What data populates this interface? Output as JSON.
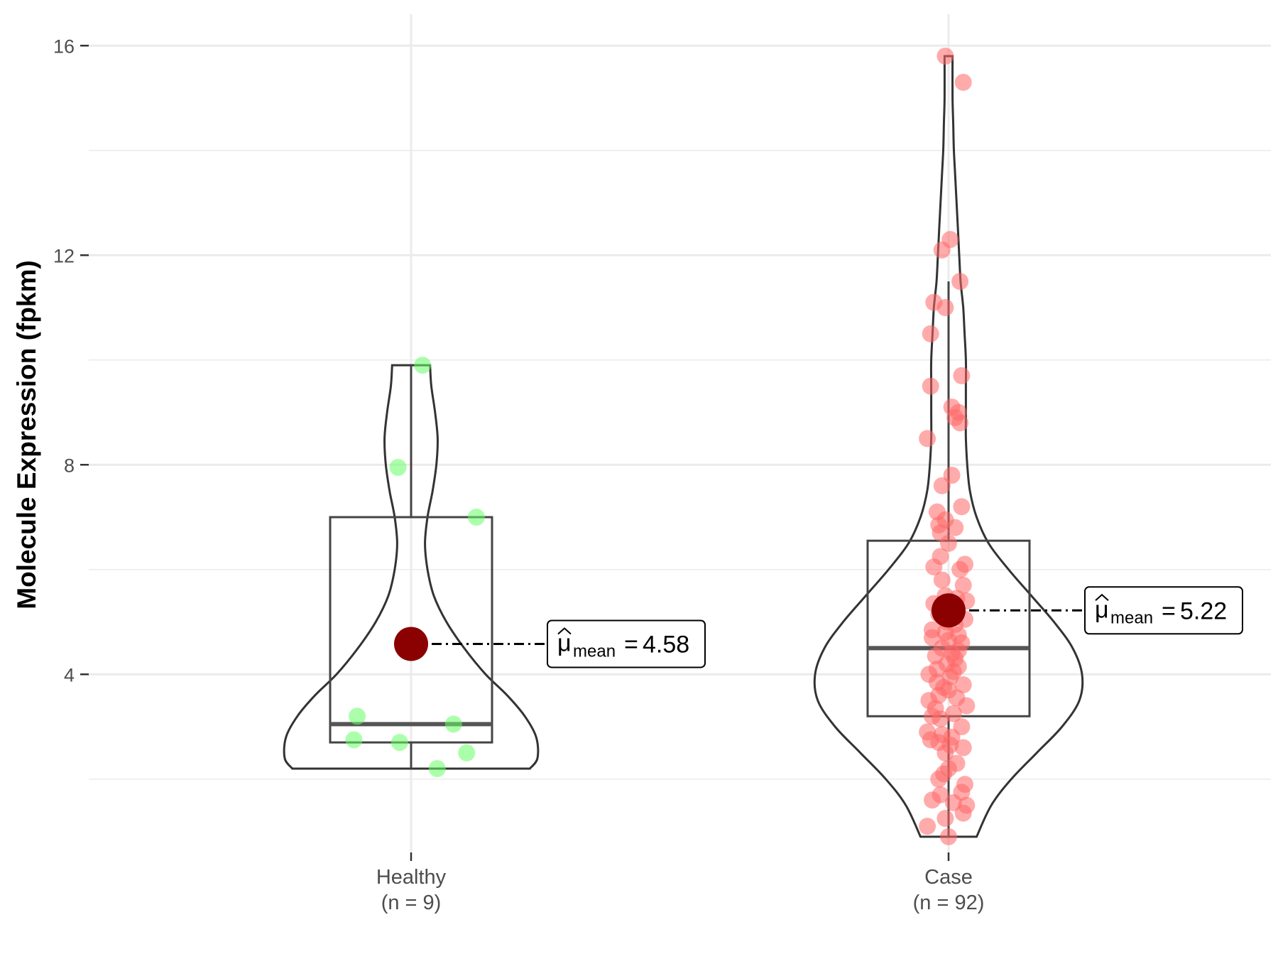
{
  "chart_data": {
    "type": "violin",
    "title": "",
    "xlabel": "",
    "ylabel": "Molecule Expression (fpkm)",
    "ylim": [
      0.6,
      16.6
    ],
    "y_ticks": [
      4,
      8,
      12,
      16
    ],
    "y_tick_labels": [
      "4",
      "8",
      "12",
      "16"
    ],
    "grid": true,
    "legend": "none",
    "mean_symbol": "μ",
    "mean_subscript": "mean",
    "groups": [
      {
        "category": "Healthy",
        "n_label": "(n = 9)",
        "color": "#66ff66",
        "mean": 4.58,
        "mean_text": "4.58",
        "box": {
          "whisker_low": 2.2,
          "q1": 2.7,
          "median": 3.05,
          "q3": 7.0,
          "whisker_high": 9.9
        },
        "violin_range": [
          2.2,
          9.9
        ],
        "violin_profile": [
          [
            2.2,
            0.94
          ],
          [
            2.4,
            1.0
          ],
          [
            2.8,
            0.99
          ],
          [
            3.2,
            0.9
          ],
          [
            3.6,
            0.76
          ],
          [
            4.0,
            0.59
          ],
          [
            4.5,
            0.42
          ],
          [
            5.0,
            0.28
          ],
          [
            5.5,
            0.18
          ],
          [
            6.0,
            0.13
          ],
          [
            6.5,
            0.11
          ],
          [
            7.0,
            0.13
          ],
          [
            7.5,
            0.17
          ],
          [
            8.0,
            0.2
          ],
          [
            8.5,
            0.21
          ],
          [
            9.0,
            0.19
          ],
          [
            9.5,
            0.16
          ],
          [
            9.9,
            0.15
          ]
        ],
        "points": [
          9.9,
          7.95,
          7.0,
          3.2,
          3.05,
          2.75,
          2.7,
          2.5,
          2.2
        ],
        "points_jitter": [
          0.07,
          -0.08,
          0.4,
          -0.33,
          0.26,
          -0.35,
          -0.07,
          0.34,
          0.16
        ]
      },
      {
        "category": "Case",
        "n_label": "(n = 92)",
        "color": "#ff6666",
        "mean": 5.22,
        "mean_text": "5.22",
        "box": {
          "whisker_low": 0.9,
          "q1": 3.2,
          "median": 4.5,
          "q3": 6.55,
          "whisker_high": 11.5
        },
        "violin_range": [
          0.9,
          15.8
        ],
        "violin_profile": [
          [
            0.9,
            0.21
          ],
          [
            1.5,
            0.32
          ],
          [
            2.0,
            0.47
          ],
          [
            2.5,
            0.66
          ],
          [
            3.0,
            0.85
          ],
          [
            3.5,
            0.98
          ],
          [
            4.0,
            1.0
          ],
          [
            4.5,
            0.93
          ],
          [
            5.0,
            0.79
          ],
          [
            5.5,
            0.62
          ],
          [
            6.0,
            0.45
          ],
          [
            6.5,
            0.3
          ],
          [
            7.0,
            0.21
          ],
          [
            7.5,
            0.16
          ],
          [
            8.0,
            0.14
          ],
          [
            8.5,
            0.13
          ],
          [
            9.0,
            0.13
          ],
          [
            9.5,
            0.13
          ],
          [
            10.0,
            0.13
          ],
          [
            10.5,
            0.12
          ],
          [
            11.0,
            0.11
          ],
          [
            11.5,
            0.09
          ],
          [
            12.0,
            0.08
          ],
          [
            12.5,
            0.07
          ],
          [
            13.0,
            0.06
          ],
          [
            13.5,
            0.05
          ],
          [
            14.0,
            0.04
          ],
          [
            14.5,
            0.035
          ],
          [
            15.0,
            0.03
          ],
          [
            15.8,
            0.03
          ]
        ],
        "points": [
          15.8,
          15.3,
          12.3,
          12.1,
          11.5,
          11.1,
          11.0,
          10.5,
          9.7,
          9.5,
          9.1,
          9.0,
          8.9,
          8.8,
          8.5,
          7.8,
          7.6,
          7.2,
          7.1,
          6.95,
          6.85,
          6.8,
          6.7,
          6.5,
          6.25,
          6.1,
          6.05,
          6.0,
          5.8,
          5.7,
          5.5,
          5.45,
          5.4,
          5.35,
          5.25,
          5.2,
          5.15,
          5.05,
          5.0,
          4.95,
          4.85,
          4.8,
          4.75,
          4.7,
          4.65,
          4.6,
          4.5,
          4.45,
          4.4,
          4.35,
          4.3,
          4.2,
          4.15,
          4.1,
          4.05,
          4.0,
          3.95,
          3.85,
          3.8,
          3.75,
          3.7,
          3.6,
          3.55,
          3.5,
          3.4,
          3.35,
          3.25,
          3.2,
          3.15,
          3.0,
          2.9,
          2.85,
          2.8,
          2.75,
          2.7,
          2.65,
          2.6,
          2.5,
          2.3,
          2.2,
          2.1,
          2.0,
          1.9,
          1.75,
          1.7,
          1.6,
          1.55,
          1.5,
          1.35,
          1.25,
          1.1,
          0.9
        ],
        "points_jitter": [
          -0.02,
          0.09,
          0.01,
          -0.04,
          0.07,
          -0.09,
          -0.02,
          -0.11,
          0.08,
          -0.11,
          0.02,
          0.06,
          0.04,
          0.07,
          -0.13,
          0.02,
          -0.04,
          0.08,
          -0.07,
          -0.02,
          -0.06,
          0.04,
          -0.05,
          0.0,
          -0.05,
          0.1,
          -0.09,
          0.07,
          -0.04,
          0.09,
          -0.02,
          0.05,
          0.11,
          -0.09,
          -0.05,
          0.03,
          -0.06,
          0.1,
          -0.01,
          0.04,
          -0.1,
          -0.02,
          0.06,
          -0.1,
          0.0,
          0.08,
          -0.04,
          0.06,
          0.02,
          -0.08,
          0.04,
          -0.01,
          0.06,
          -0.07,
          0.03,
          -0.12,
          0.01,
          -0.07,
          0.09,
          -0.03,
          0.0,
          -0.06,
          0.05,
          -0.12,
          0.11,
          -0.08,
          0.03,
          -0.1,
          -0.05,
          0.08,
          -0.13,
          -0.04,
          0.02,
          -0.11,
          -0.06,
          0.01,
          0.09,
          -0.02,
          0.05,
          0.0,
          -0.03,
          -0.06,
          0.1,
          0.08,
          -0.05,
          -0.1,
          0.03,
          0.11,
          0.09,
          -0.02,
          -0.13,
          0.0
        ]
      }
    ]
  }
}
